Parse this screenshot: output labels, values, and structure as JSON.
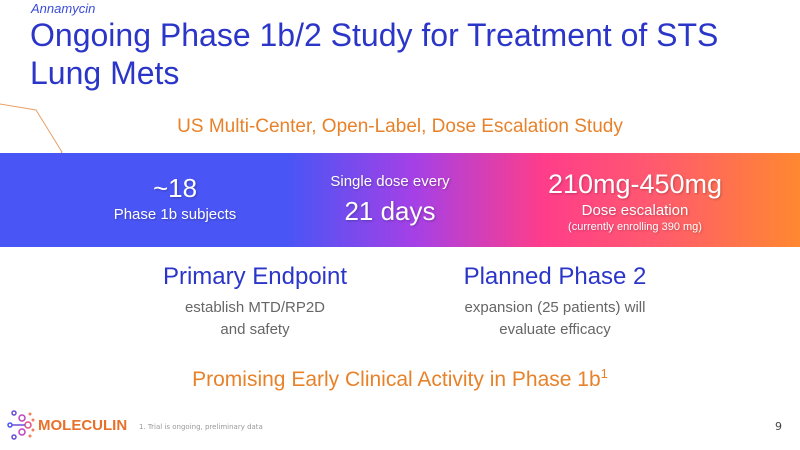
{
  "header": {
    "kicker": "Annamycin",
    "title": "Ongoing Phase 1b/2 Study for Treatment of STS Lung Mets"
  },
  "subtitle": "US Multi-Center, Open-Label, Dose Escalation Study",
  "band": {
    "subjects": {
      "value": "~18",
      "label": "Phase 1b subjects"
    },
    "dosing": {
      "label": "Single dose every",
      "value": "21 days"
    },
    "dose": {
      "value": "210mg-450mg",
      "label": "Dose escalation",
      "note": "(currently enrolling 390 mg)"
    }
  },
  "primary": {
    "heading": "Primary Endpoint",
    "line1": "establish MTD/RP2D",
    "line2": "and safety"
  },
  "phase2": {
    "heading": "Planned Phase 2",
    "line1": "expansion (25 patients) will",
    "line2": "evaluate efficacy"
  },
  "promo": {
    "text": "Promising Early Clinical Activity in Phase 1b",
    "sup": "1"
  },
  "footer": {
    "logo": "MOLECULIN",
    "footnote": "1. Trial is ongoing, preliminary data",
    "page": "9"
  },
  "colors": {
    "blue": "#2b36c8",
    "orange": "#e8822a"
  }
}
